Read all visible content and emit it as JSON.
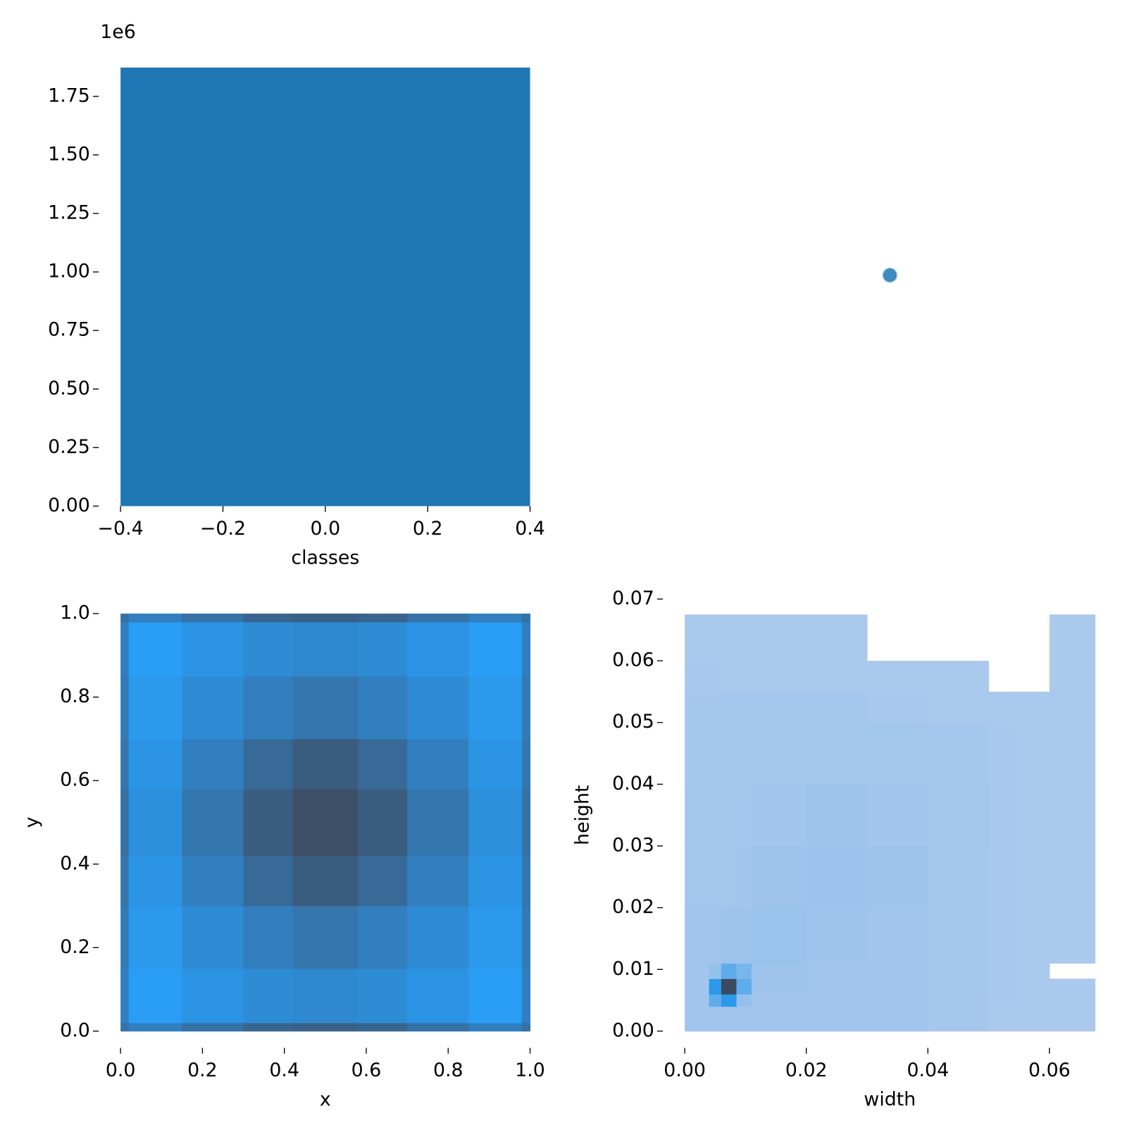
{
  "chart_data": [
    {
      "type": "histogram",
      "bins": [
        -0.4,
        0.4
      ],
      "values": [
        1873000
      ],
      "color": "#1f77b4",
      "xlabel": "classes",
      "y_offset_label": "1e6",
      "xlim": [
        -0.4,
        0.4
      ],
      "ylim": [
        0,
        1873000
      ],
      "xticks": [
        {
          "value": -0.4,
          "label": "−0.4"
        },
        {
          "value": -0.2,
          "label": "−0.2"
        },
        {
          "value": 0,
          "label": "0.0"
        },
        0.2,
        0.4
      ],
      "yticks": [
        {
          "value": 0,
          "label": "0.00"
        },
        {
          "value": 250000,
          "label": "0.25"
        },
        {
          "value": 500000,
          "label": "0.50"
        },
        {
          "value": 750000,
          "label": "0.75"
        },
        {
          "value": 1000000,
          "label": "1.00"
        },
        {
          "value": 1250000,
          "label": "1.25"
        },
        {
          "value": 1500000,
          "label": "1.50"
        },
        {
          "value": 1750000,
          "label": "1.75"
        }
      ]
    },
    {
      "type": "scatter",
      "x": [
        0
      ],
      "values": [
        0
      ],
      "color": "#1f77b4"
    },
    {
      "type": "heatmap",
      "xlabel": "x",
      "ylabel": "y",
      "cmap": [
        "#2a9df4",
        "#3d5068"
      ],
      "xbins": [
        0,
        0.02,
        0.15,
        0.3,
        0.42,
        0.58,
        0.7,
        0.85,
        0.98,
        1
      ],
      "ybins": [
        0,
        0.02,
        0.15,
        0.3,
        0.42,
        0.58,
        0.7,
        0.85,
        0.98,
        1
      ],
      "values": [
        [
          60,
          45,
          60,
          75,
          80,
          75,
          60,
          45,
          60
        ],
        [
          45,
          10,
          20,
          30,
          35,
          30,
          20,
          10,
          45
        ],
        [
          50,
          15,
          30,
          45,
          55,
          45,
          30,
          15,
          50
        ],
        [
          55,
          20,
          45,
          70,
          85,
          70,
          45,
          20,
          55
        ],
        [
          60,
          25,
          55,
          85,
          100,
          85,
          55,
          25,
          60
        ],
        [
          55,
          20,
          45,
          70,
          85,
          70,
          45,
          20,
          55
        ],
        [
          50,
          15,
          30,
          45,
          55,
          45,
          30,
          15,
          50
        ],
        [
          45,
          10,
          20,
          30,
          35,
          30,
          20,
          10,
          45
        ],
        [
          60,
          45,
          60,
          75,
          80,
          75,
          60,
          45,
          60
        ]
      ],
      "xlim": [
        0,
        1
      ],
      "ylim": [
        0,
        1
      ],
      "xticks": [
        {
          "value": 0,
          "label": "0.0"
        },
        0.2,
        0.4,
        0.6,
        0.8,
        {
          "value": 1,
          "label": "1.0"
        }
      ],
      "yticks": [
        {
          "value": 0,
          "label": "0.0"
        },
        0.2,
        0.4,
        0.6,
        0.8,
        {
          "value": 1,
          "label": "1.0"
        }
      ]
    },
    {
      "type": "heatmap",
      "xlabel": "width",
      "ylabel": "height",
      "cmap": [
        "#abc9ed",
        "#2a98ea",
        "#3b4a5e"
      ],
      "xbins": [
        0,
        0.004,
        0.006,
        0.0085,
        0.011,
        0.02,
        0.03,
        0.04,
        0.05,
        0.055,
        0.06,
        0.0675
      ],
      "ybins": [
        0,
        0.004,
        0.006,
        0.0085,
        0.011,
        0.02,
        0.03,
        0.04,
        0.05,
        0.055,
        0.06,
        0.0675
      ],
      "values": [
        [
          5,
          5,
          5,
          5,
          5,
          5,
          5,
          3,
          1,
          1,
          1
        ],
        [
          5,
          30,
          50,
          10,
          5,
          5,
          5,
          3,
          2,
          1,
          1
        ],
        [
          5,
          50,
          100,
          30,
          6,
          5,
          5,
          3,
          2,
          1,
          1
        ],
        [
          5,
          10,
          30,
          20,
          6,
          5,
          5,
          3,
          2,
          1,
          0
        ],
        [
          5,
          5,
          6,
          6,
          8,
          6,
          5,
          3,
          2,
          1,
          1
        ],
        [
          4,
          4,
          4,
          5,
          6,
          7,
          6,
          3,
          2,
          1,
          1
        ],
        [
          4,
          4,
          4,
          4,
          5,
          6,
          5,
          4,
          2,
          1,
          1
        ],
        [
          3,
          3,
          3,
          3,
          4,
          4,
          4,
          3,
          2,
          1,
          1
        ],
        [
          3,
          3,
          3,
          3,
          3,
          3,
          2,
          1,
          1,
          1,
          1
        ],
        [
          2,
          2,
          1,
          1,
          1,
          1,
          1,
          1,
          0,
          0,
          1
        ],
        [
          1,
          1,
          1,
          1,
          1,
          1,
          0,
          0,
          0,
          0,
          1
        ]
      ],
      "xlim": [
        0,
        0.0675
      ],
      "ylim": [
        0,
        0.07
      ],
      "xticks": [
        {
          "value": 0,
          "label": "0.00"
        },
        0.02,
        0.04,
        0.06
      ],
      "yticks": [
        {
          "value": 0,
          "label": "0.00"
        },
        0.01,
        0.02,
        0.03,
        0.04,
        0.05,
        0.06,
        0.07
      ]
    }
  ]
}
